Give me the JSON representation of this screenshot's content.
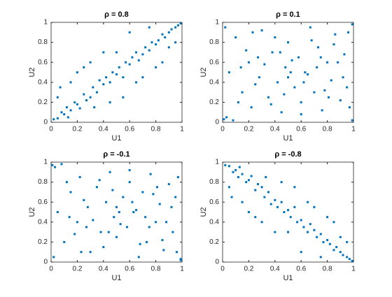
{
  "chart_data": [
    {
      "type": "scatter",
      "title": "ρ = 0.8",
      "x_label": "U1",
      "y_label": "U2",
      "color": "#0072bd",
      "xlim": [
        0,
        1
      ],
      "ylim": [
        0,
        1
      ],
      "xticks": [
        0,
        0.2,
        0.4,
        0.6,
        0.8,
        1
      ],
      "yticks": [
        0,
        0.2,
        0.4,
        0.6,
        0.8,
        1
      ],
      "x": [
        0.02,
        0.05,
        0.08,
        0.1,
        0.12,
        0.15,
        0.18,
        0.2,
        0.22,
        0.25,
        0.27,
        0.3,
        0.32,
        0.35,
        0.37,
        0.4,
        0.42,
        0.45,
        0.47,
        0.5,
        0.52,
        0.55,
        0.57,
        0.6,
        0.62,
        0.65,
        0.67,
        0.7,
        0.72,
        0.75,
        0.77,
        0.8,
        0.82,
        0.85,
        0.87,
        0.9,
        0.92,
        0.95,
        0.97,
        0.99,
        0.07,
        0.13,
        0.25,
        0.33,
        0.4,
        0.55,
        0.6,
        0.7,
        0.85,
        0.9,
        0.15,
        0.3,
        0.45,
        0.65,
        0.8,
        0.05,
        0.2,
        0.5,
        0.75,
        0.95
      ],
      "values": [
        0.03,
        0.04,
        0.1,
        0.08,
        0.15,
        0.12,
        0.2,
        0.18,
        0.14,
        0.28,
        0.22,
        0.25,
        0.35,
        0.3,
        0.42,
        0.38,
        0.45,
        0.4,
        0.5,
        0.48,
        0.55,
        0.45,
        0.6,
        0.58,
        0.65,
        0.7,
        0.62,
        0.68,
        0.75,
        0.72,
        0.8,
        0.78,
        0.82,
        0.88,
        0.85,
        0.9,
        0.93,
        0.95,
        0.97,
        0.99,
        0.35,
        0.05,
        0.55,
        0.15,
        0.7,
        0.25,
        0.9,
        0.45,
        0.6,
        0.75,
        0.4,
        0.6,
        0.2,
        0.4,
        0.55,
        0.25,
        0.5,
        0.7,
        0.95,
        0.8
      ]
    },
    {
      "type": "scatter",
      "title": "ρ = 0.1",
      "x_label": "U1",
      "y_label": "U2",
      "color": "#0072bd",
      "xlim": [
        0,
        1
      ],
      "ylim": [
        0,
        1
      ],
      "xticks": [
        0,
        0.2,
        0.4,
        0.6,
        0.8,
        1
      ],
      "yticks": [
        0,
        0.2,
        0.4,
        0.6,
        0.8,
        1
      ],
      "x": [
        0.03,
        0.1,
        0.15,
        0.2,
        0.22,
        0.28,
        0.3,
        0.35,
        0.38,
        0.42,
        0.45,
        0.48,
        0.5,
        0.55,
        0.58,
        0.6,
        0.63,
        0.67,
        0.7,
        0.73,
        0.76,
        0.8,
        0.83,
        0.86,
        0.9,
        0.93,
        0.96,
        0.99,
        0.05,
        0.12,
        0.18,
        0.25,
        0.32,
        0.4,
        0.47,
        0.53,
        0.6,
        0.65,
        0.72,
        0.78,
        0.85,
        0.92,
        0.97,
        0.02,
        0.08,
        0.27,
        0.37,
        0.52,
        0.68,
        0.88,
        0.95,
        0.14,
        0.44,
        0.62,
        0.81,
        0.01,
        0.99,
        0.5,
        0.23,
        0.75
      ],
      "values": [
        0.05,
        0.85,
        0.3,
        0.6,
        0.15,
        0.45,
        0.92,
        0.25,
        0.7,
        0.4,
        0.1,
        0.55,
        0.8,
        0.35,
        0.65,
        0.2,
        0.5,
        0.95,
        0.3,
        0.75,
        0.12,
        0.6,
        0.42,
        0.88,
        0.22,
        0.68,
        0.9,
        0.98,
        0.5,
        0.2,
        0.72,
        0.38,
        0.58,
        0.85,
        0.28,
        0.62,
        0.08,
        0.48,
        0.55,
        0.32,
        0.78,
        0.45,
        0.15,
        0.95,
        0.02,
        0.65,
        0.18,
        0.5,
        0.82,
        0.6,
        0.35,
        0.55,
        0.7,
        0.4,
        0.25,
        0.03,
        0.02,
        0.45,
        0.9,
        0.65
      ]
    },
    {
      "type": "scatter",
      "title": "ρ = -0.1",
      "x_label": "U1",
      "y_label": "U2",
      "color": "#0072bd",
      "xlim": [
        0,
        1
      ],
      "ylim": [
        0,
        1
      ],
      "xticks": [
        0,
        0.2,
        0.4,
        0.6,
        0.8,
        1
      ],
      "yticks": [
        0,
        0.2,
        0.4,
        0.6,
        0.8,
        1
      ],
      "x": [
        0.03,
        0.1,
        0.15,
        0.2,
        0.22,
        0.28,
        0.3,
        0.35,
        0.38,
        0.42,
        0.45,
        0.48,
        0.5,
        0.55,
        0.58,
        0.6,
        0.63,
        0.67,
        0.7,
        0.73,
        0.76,
        0.8,
        0.83,
        0.86,
        0.9,
        0.93,
        0.96,
        0.99,
        0.05,
        0.12,
        0.18,
        0.25,
        0.32,
        0.4,
        0.47,
        0.53,
        0.6,
        0.65,
        0.72,
        0.78,
        0.85,
        0.92,
        0.97,
        0.02,
        0.08,
        0.27,
        0.37,
        0.52,
        0.68,
        0.88,
        0.95,
        0.14,
        0.44,
        0.62,
        0.81,
        0.01,
        0.99,
        0.5,
        0.23,
        0.75
      ],
      "values": [
        0.95,
        0.2,
        0.7,
        0.4,
        0.85,
        0.55,
        0.1,
        0.75,
        0.3,
        0.6,
        0.9,
        0.45,
        0.25,
        0.65,
        0.35,
        0.8,
        0.5,
        0.05,
        0.7,
        0.2,
        0.88,
        0.4,
        0.58,
        0.12,
        0.78,
        0.3,
        0.1,
        0.02,
        0.5,
        0.8,
        0.28,
        0.62,
        0.42,
        0.15,
        0.72,
        0.38,
        0.92,
        0.52,
        0.45,
        0.68,
        0.22,
        0.55,
        0.85,
        0.05,
        0.98,
        0.35,
        0.82,
        0.5,
        0.18,
        0.4,
        0.65,
        0.45,
        0.3,
        0.6,
        0.75,
        0.97,
        0.03,
        0.55,
        0.1,
        0.35
      ]
    },
    {
      "type": "scatter",
      "title": "ρ = -0.8",
      "x_label": "U1",
      "y_label": "U2",
      "color": "#0072bd",
      "xlim": [
        0,
        1
      ],
      "ylim": [
        0,
        1
      ],
      "xticks": [
        0,
        0.2,
        0.4,
        0.6,
        0.8,
        1
      ],
      "yticks": [
        0,
        0.2,
        0.4,
        0.6,
        0.8,
        1
      ],
      "x": [
        0.02,
        0.05,
        0.08,
        0.1,
        0.12,
        0.15,
        0.18,
        0.2,
        0.22,
        0.25,
        0.27,
        0.3,
        0.32,
        0.35,
        0.37,
        0.4,
        0.42,
        0.45,
        0.47,
        0.5,
        0.52,
        0.55,
        0.57,
        0.6,
        0.62,
        0.65,
        0.67,
        0.7,
        0.72,
        0.75,
        0.77,
        0.8,
        0.82,
        0.85,
        0.87,
        0.9,
        0.92,
        0.95,
        0.97,
        0.99,
        0.07,
        0.13,
        0.25,
        0.33,
        0.4,
        0.55,
        0.6,
        0.7,
        0.85,
        0.9,
        0.15,
        0.3,
        0.45,
        0.65,
        0.8,
        0.05,
        0.2,
        0.5,
        0.75,
        0.95
      ],
      "values": [
        0.97,
        0.96,
        0.9,
        0.92,
        0.85,
        0.88,
        0.8,
        0.82,
        0.86,
        0.72,
        0.78,
        0.75,
        0.65,
        0.7,
        0.58,
        0.62,
        0.55,
        0.6,
        0.5,
        0.52,
        0.45,
        0.55,
        0.4,
        0.42,
        0.35,
        0.3,
        0.38,
        0.32,
        0.25,
        0.28,
        0.2,
        0.22,
        0.18,
        0.12,
        0.15,
        0.1,
        0.07,
        0.05,
        0.03,
        0.01,
        0.65,
        0.95,
        0.45,
        0.85,
        0.3,
        0.75,
        0.1,
        0.55,
        0.4,
        0.25,
        0.6,
        0.4,
        0.8,
        0.6,
        0.45,
        0.75,
        0.5,
        0.3,
        0.05,
        0.2
      ]
    }
  ]
}
